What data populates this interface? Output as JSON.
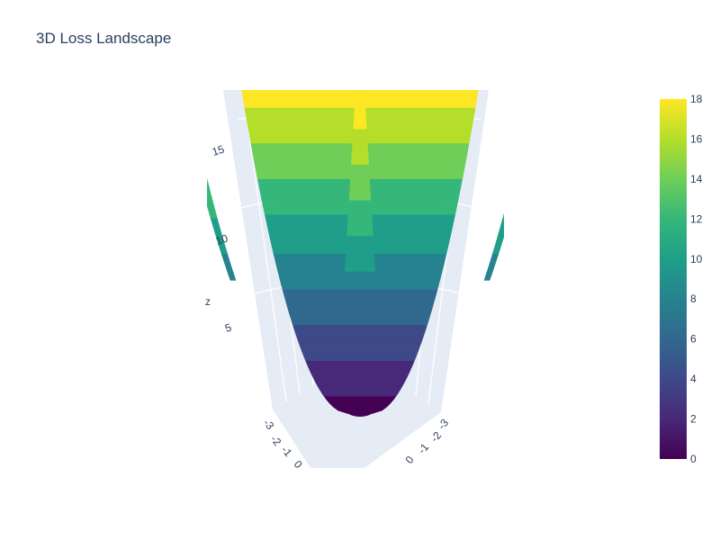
{
  "chart_data": {
    "type": "surface",
    "title": "3D Loss Landscape",
    "z_axis": {
      "label": "z",
      "ticks": [
        5,
        10,
        15
      ]
    },
    "x_axis": {
      "label": "",
      "ticks": [
        -3,
        -2,
        -1,
        0
      ]
    },
    "y_axis": {
      "label": "",
      "ticks": [
        -3,
        -2,
        -1,
        0
      ]
    },
    "z_range": [
      0,
      18
    ],
    "function_shape": "paraboloid z = x^2 + y^2",
    "colorscale": "Viridis",
    "colorscale_stops": [
      "#440154",
      "#482878",
      "#3e4989",
      "#31688e",
      "#26828e",
      "#1f9e89",
      "#35b779",
      "#6ece58",
      "#b5de2b",
      "#fde725"
    ],
    "colorbar": {
      "range": [
        0,
        18
      ],
      "ticks": [
        0,
        2,
        4,
        6,
        8,
        10,
        12,
        14,
        16,
        18
      ]
    },
    "scene_background": "#e5ecf6",
    "grid": true
  }
}
